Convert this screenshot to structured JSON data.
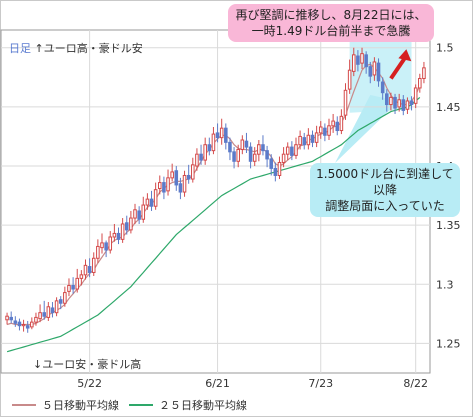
{
  "chart_data": {
    "type": "candlestick",
    "title_prefix": "日足",
    "top_label": "↑ユーロ高・豪ドル安",
    "bottom_label": "↓ユーロ安・豪ドル高",
    "ylim": [
      1.225,
      1.515
    ],
    "y_ticks": [
      1.25,
      1.3,
      1.35,
      1.4,
      1.45,
      1.5
    ],
    "y_tick_labels": [
      "1.25",
      "1.3",
      "1.35",
      "1.4",
      "1.45",
      "1.5"
    ],
    "x_tick_labels": [
      "5/22",
      "6/21",
      "7/23",
      "8/22"
    ],
    "grid": true,
    "colors": {
      "up_candle": "#d44a4a",
      "down_candle": "#5c7bc9",
      "ma5": "#c88a8a",
      "ma25": "#2ea86a",
      "highlight": "#b8ecf5",
      "arrow": "#d62020"
    },
    "candles": [
      [
        1.27,
        1.273,
        1.276,
        1.266
      ],
      [
        1.272,
        1.27,
        1.277,
        1.267
      ],
      [
        1.269,
        1.267,
        1.273,
        1.264
      ],
      [
        1.268,
        1.265,
        1.271,
        1.261
      ],
      [
        1.265,
        1.266,
        1.27,
        1.26
      ],
      [
        1.265,
        1.263,
        1.269,
        1.259
      ],
      [
        1.264,
        1.268,
        1.272,
        1.262
      ],
      [
        1.268,
        1.272,
        1.276,
        1.265
      ],
      [
        1.271,
        1.276,
        1.283,
        1.268
      ],
      [
        1.276,
        1.273,
        1.286,
        1.27
      ],
      [
        1.272,
        1.281,
        1.285,
        1.269
      ],
      [
        1.28,
        1.276,
        1.285,
        1.272
      ],
      [
        1.276,
        1.286,
        1.289,
        1.273
      ],
      [
        1.287,
        1.284,
        1.29,
        1.279
      ],
      [
        1.284,
        1.293,
        1.298,
        1.281
      ],
      [
        1.294,
        1.299,
        1.305,
        1.29
      ],
      [
        1.299,
        1.296,
        1.306,
        1.292
      ],
      [
        1.296,
        1.305,
        1.313,
        1.293
      ],
      [
        1.305,
        1.308,
        1.312,
        1.299
      ],
      [
        1.308,
        1.316,
        1.321,
        1.304
      ],
      [
        1.315,
        1.31,
        1.322,
        1.306
      ],
      [
        1.31,
        1.322,
        1.327,
        1.307
      ],
      [
        1.322,
        1.332,
        1.338,
        1.318
      ],
      [
        1.331,
        1.335,
        1.343,
        1.326
      ],
      [
        1.335,
        1.329,
        1.337,
        1.323
      ],
      [
        1.329,
        1.34,
        1.345,
        1.326
      ],
      [
        1.34,
        1.343,
        1.351,
        1.336
      ],
      [
        1.343,
        1.338,
        1.348,
        1.334
      ],
      [
        1.338,
        1.351,
        1.356,
        1.335
      ],
      [
        1.352,
        1.346,
        1.358,
        1.342
      ],
      [
        1.346,
        1.356,
        1.362,
        1.343
      ],
      [
        1.356,
        1.363,
        1.368,
        1.351
      ],
      [
        1.362,
        1.355,
        1.366,
        1.351
      ],
      [
        1.355,
        1.367,
        1.374,
        1.352
      ],
      [
        1.367,
        1.372,
        1.377,
        1.363
      ],
      [
        1.372,
        1.366,
        1.379,
        1.362
      ],
      [
        1.366,
        1.38,
        1.386,
        1.363
      ],
      [
        1.381,
        1.386,
        1.392,
        1.376
      ],
      [
        1.386,
        1.378,
        1.391,
        1.372
      ],
      [
        1.379,
        1.39,
        1.397,
        1.375
      ],
      [
        1.39,
        1.395,
        1.402,
        1.387
      ],
      [
        1.396,
        1.384,
        1.4,
        1.379
      ],
      [
        1.385,
        1.378,
        1.39,
        1.372
      ],
      [
        1.378,
        1.392,
        1.396,
        1.374
      ],
      [
        1.392,
        1.389,
        1.401,
        1.385
      ],
      [
        1.389,
        1.401,
        1.407,
        1.386
      ],
      [
        1.4,
        1.41,
        1.415,
        1.396
      ],
      [
        1.41,
        1.405,
        1.418,
        1.401
      ],
      [
        1.405,
        1.418,
        1.424,
        1.401
      ],
      [
        1.418,
        1.413,
        1.424,
        1.409
      ],
      [
        1.413,
        1.427,
        1.433,
        1.41
      ],
      [
        1.428,
        1.424,
        1.436,
        1.42
      ],
      [
        1.424,
        1.432,
        1.44,
        1.418
      ],
      [
        1.432,
        1.42,
        1.436,
        1.414
      ],
      [
        1.42,
        1.412,
        1.424,
        1.405
      ],
      [
        1.412,
        1.404,
        1.416,
        1.398
      ],
      [
        1.404,
        1.414,
        1.418,
        1.399
      ],
      [
        1.414,
        1.422,
        1.426,
        1.41
      ],
      [
        1.421,
        1.416,
        1.428,
        1.411
      ],
      [
        1.416,
        1.404,
        1.42,
        1.398
      ],
      [
        1.404,
        1.41,
        1.416,
        1.4
      ],
      [
        1.41,
        1.418,
        1.422,
        1.404
      ],
      [
        1.418,
        1.413,
        1.426,
        1.409
      ],
      [
        1.413,
        1.406,
        1.417,
        1.399
      ],
      [
        1.406,
        1.398,
        1.41,
        1.392
      ],
      [
        1.398,
        1.392,
        1.403,
        1.387
      ],
      [
        1.392,
        1.403,
        1.408,
        1.389
      ],
      [
        1.403,
        1.41,
        1.416,
        1.399
      ],
      [
        1.41,
        1.416,
        1.42,
        1.405
      ],
      [
        1.416,
        1.409,
        1.421,
        1.405
      ],
      [
        1.409,
        1.418,
        1.424,
        1.406
      ],
      [
        1.418,
        1.425,
        1.43,
        1.414
      ],
      [
        1.424,
        1.418,
        1.428,
        1.414
      ],
      [
        1.418,
        1.426,
        1.432,
        1.414
      ],
      [
        1.426,
        1.42,
        1.43,
        1.416
      ],
      [
        1.42,
        1.428,
        1.434,
        1.416
      ],
      [
        1.428,
        1.433,
        1.438,
        1.423
      ],
      [
        1.432,
        1.426,
        1.436,
        1.421
      ],
      [
        1.426,
        1.434,
        1.44,
        1.422
      ],
      [
        1.434,
        1.438,
        1.444,
        1.428
      ],
      [
        1.437,
        1.43,
        1.442,
        1.426
      ],
      [
        1.43,
        1.442,
        1.448,
        1.427
      ],
      [
        1.443,
        1.464,
        1.47,
        1.439
      ],
      [
        1.465,
        1.481,
        1.49,
        1.461
      ],
      [
        1.48,
        1.494,
        1.5,
        1.476
      ],
      [
        1.493,
        1.486,
        1.498,
        1.48
      ],
      [
        1.487,
        1.495,
        1.5,
        1.482
      ],
      [
        1.494,
        1.484,
        1.497,
        1.478
      ],
      [
        1.484,
        1.476,
        1.488,
        1.47
      ],
      [
        1.477,
        1.488,
        1.492,
        1.472
      ],
      [
        1.487,
        1.472,
        1.491,
        1.467
      ],
      [
        1.471,
        1.462,
        1.475,
        1.456
      ],
      [
        1.461,
        1.452,
        1.465,
        1.446
      ],
      [
        1.452,
        1.458,
        1.462,
        1.447
      ],
      [
        1.458,
        1.449,
        1.461,
        1.444
      ],
      [
        1.45,
        1.456,
        1.461,
        1.446
      ],
      [
        1.456,
        1.447,
        1.46,
        1.443
      ],
      [
        1.448,
        1.455,
        1.458,
        1.444
      ],
      [
        1.455,
        1.452,
        1.459,
        1.447
      ],
      [
        1.453,
        1.466,
        1.469,
        1.449
      ],
      [
        1.466,
        1.474,
        1.478,
        1.462
      ],
      [
        1.474,
        1.483,
        1.488,
        1.47
      ]
    ],
    "ma5": [
      1.266,
      1.267,
      1.266,
      1.266,
      1.266,
      1.266,
      1.266,
      1.267,
      1.269,
      1.271,
      1.274,
      1.276,
      1.278,
      1.28,
      1.283,
      1.288,
      1.292,
      1.296,
      1.3,
      1.305,
      1.309,
      1.312,
      1.318,
      1.323,
      1.328,
      1.334,
      1.337,
      1.339,
      1.34,
      1.344,
      1.347,
      1.352,
      1.355,
      1.36,
      1.365,
      1.368,
      1.372,
      1.378,
      1.381,
      1.384,
      1.386,
      1.387,
      1.387,
      1.388,
      1.389,
      1.392,
      1.398,
      1.404,
      1.41,
      1.414,
      1.419,
      1.423,
      1.426,
      1.426,
      1.423,
      1.418,
      1.415,
      1.414,
      1.414,
      1.413,
      1.412,
      1.414,
      1.414,
      1.412,
      1.408,
      1.402,
      1.4,
      1.402,
      1.405,
      1.408,
      1.412,
      1.417,
      1.418,
      1.422,
      1.423,
      1.425,
      1.427,
      1.428,
      1.43,
      1.433,
      1.434,
      1.437,
      1.443,
      1.453,
      1.463,
      1.472,
      1.481,
      1.485,
      1.486,
      1.483,
      1.479,
      1.474,
      1.466,
      1.46,
      1.455,
      1.453,
      1.452,
      1.452,
      1.455,
      1.46,
      1.468
    ],
    "ma25": [
      1.243,
      1.244,
      1.245,
      1.246,
      1.247,
      1.248,
      1.249,
      1.25,
      1.251,
      1.252,
      1.253,
      1.254,
      1.255,
      1.256,
      1.258,
      1.26,
      1.262,
      1.264,
      1.266,
      1.268,
      1.27,
      1.272,
      1.274,
      1.277,
      1.28,
      1.283,
      1.286,
      1.289,
      1.292,
      1.295,
      1.298,
      1.302,
      1.306,
      1.31,
      1.314,
      1.318,
      1.322,
      1.326,
      1.33,
      1.334,
      1.338,
      1.342,
      1.345,
      1.348,
      1.351,
      1.354,
      1.357,
      1.36,
      1.363,
      1.366,
      1.369,
      1.372,
      1.375,
      1.377,
      1.379,
      1.381,
      1.383,
      1.385,
      1.387,
      1.389,
      1.39,
      1.391,
      1.392,
      1.393,
      1.394,
      1.395,
      1.396,
      1.397,
      1.398,
      1.399,
      1.4,
      1.401,
      1.402,
      1.403,
      1.404,
      1.406,
      1.408,
      1.41,
      1.412,
      1.414,
      1.416,
      1.418,
      1.421,
      1.424,
      1.427,
      1.43,
      1.432,
      1.434,
      1.436,
      1.438,
      1.44,
      1.442,
      1.444,
      1.446,
      1.447,
      1.448,
      1.449,
      1.45,
      1.452,
      1.455,
      1.458
    ],
    "legend": {
      "ma5_label": "５日移動平均線",
      "ma25_label": "２５日移動平均線"
    },
    "annotations": {
      "top_note": "再び堅調に推移し、8月22日には、\n一時1.49ドル台前半まで急騰",
      "mid_note": "1.5000ドル台に到達して以降\n調整局面に入っていた"
    }
  }
}
